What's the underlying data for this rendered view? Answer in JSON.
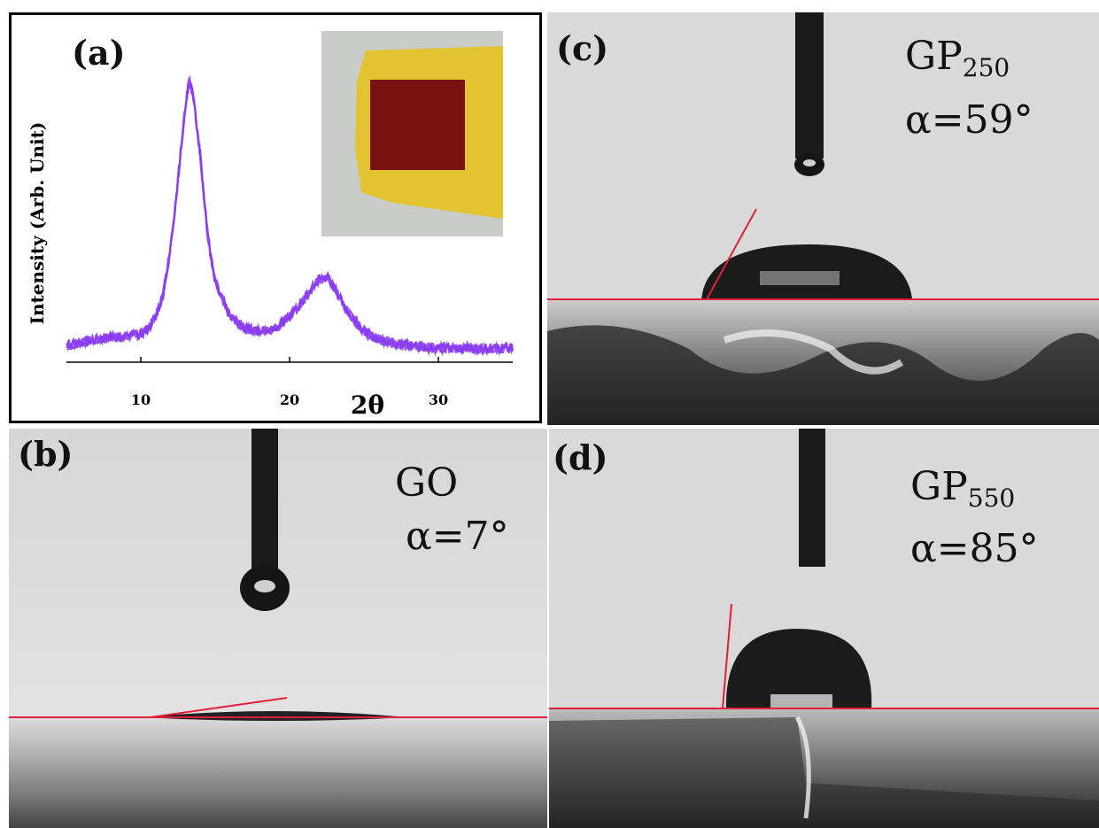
{
  "figure": {
    "panel_a": {
      "letter": "(a)",
      "ylabel": "Intensity (Arb. Unit)",
      "xlabel": "2θ",
      "inset_colors": {
        "film": "#7a1212",
        "substrate": "#e2c331",
        "background": "#c9ccc9"
      }
    },
    "panel_b": {
      "letter": "(b)",
      "sample": "GO",
      "angle": "α=7°",
      "angle_deg": 7
    },
    "panel_c": {
      "letter": "(c)",
      "sample": "GP",
      "sample_sub": "250",
      "angle": "α=59°",
      "angle_deg": 59
    },
    "panel_d": {
      "letter": "(d)",
      "sample": "GP",
      "sample_sub": "550",
      "angle": "α=85°",
      "angle_deg": 85
    }
  },
  "chart_data": {
    "type": "line",
    "xlabel": "2θ",
    "ylabel": "Intensity (Arb. Unit)",
    "xlim": [
      5,
      35
    ],
    "xticks": [
      10,
      20,
      30
    ],
    "series_color": "#8a3cf0",
    "x": [
      5,
      6,
      7,
      8,
      9,
      10,
      10.5,
      11,
      11.5,
      12,
      12.5,
      13,
      13.25,
      13.5,
      14,
      14.5,
      15,
      16,
      17,
      18,
      19,
      20,
      21,
      21.5,
      22,
      22.5,
      23,
      24,
      25,
      26,
      28,
      30,
      32,
      35
    ],
    "y": [
      0.04,
      0.05,
      0.06,
      0.07,
      0.07,
      0.08,
      0.1,
      0.14,
      0.22,
      0.38,
      0.62,
      0.88,
      0.96,
      0.92,
      0.7,
      0.42,
      0.26,
      0.14,
      0.1,
      0.09,
      0.1,
      0.14,
      0.2,
      0.24,
      0.27,
      0.28,
      0.24,
      0.15,
      0.09,
      0.06,
      0.04,
      0.03,
      0.03,
      0.03
    ]
  }
}
